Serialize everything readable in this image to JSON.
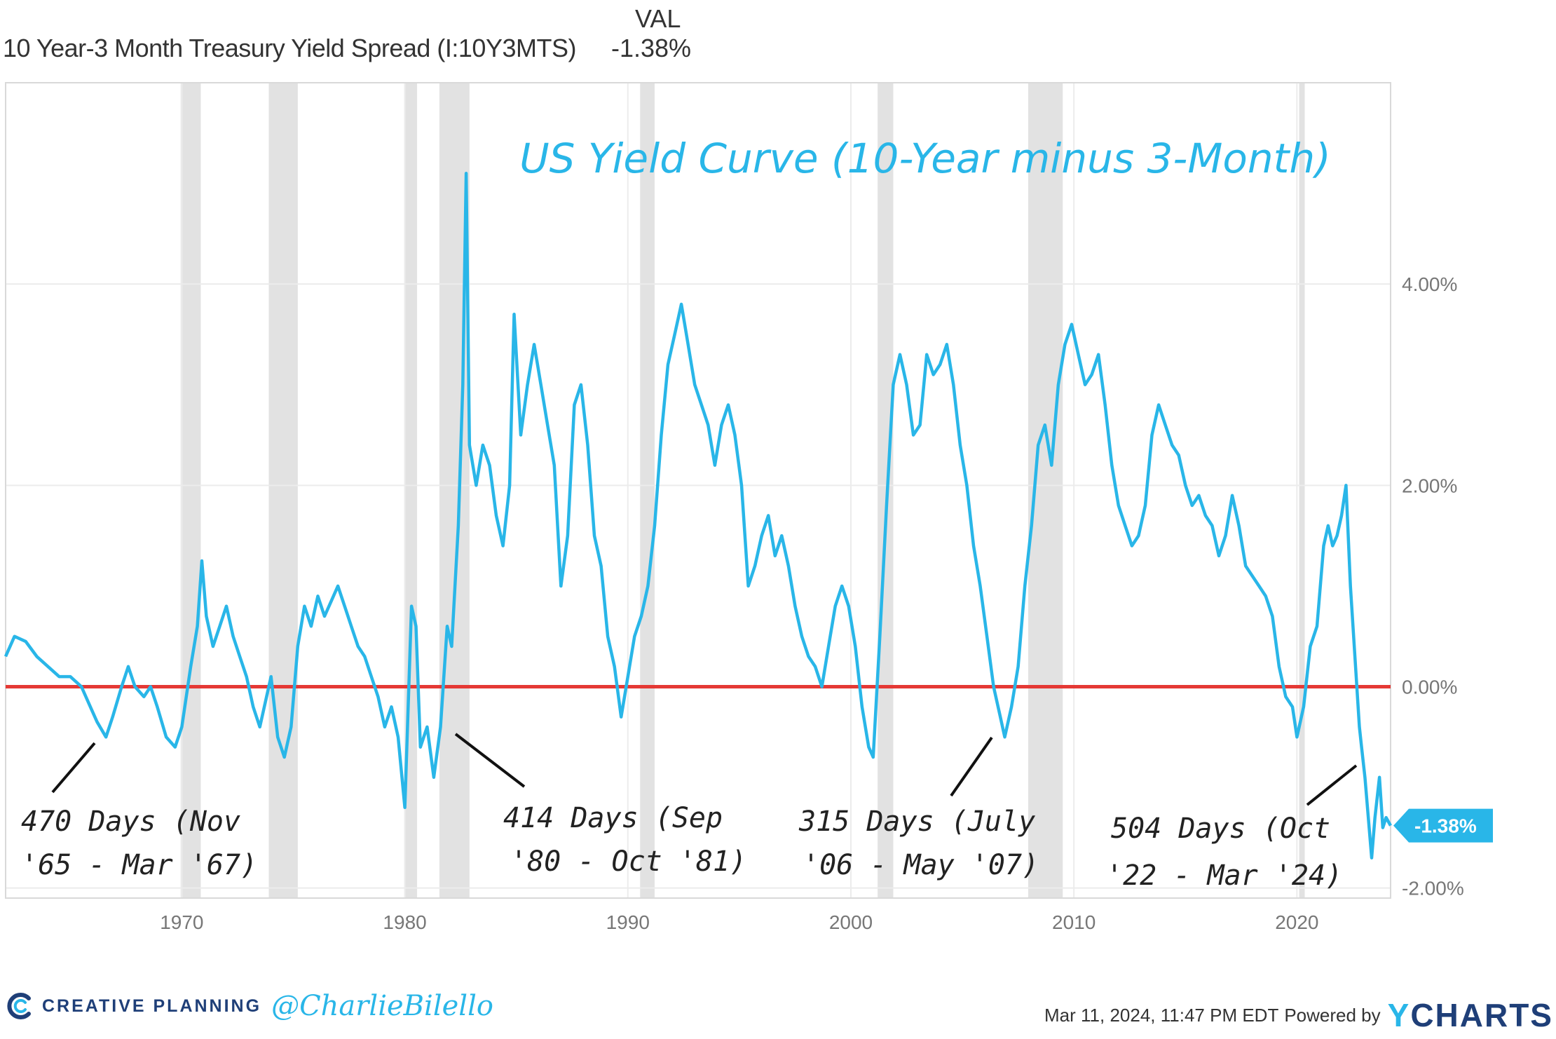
{
  "legend": {
    "column_header": "VAL",
    "series_label": "10 Year-3 Month Treasury Yield Spread (I:10Y3MTS)",
    "series_value": "-1.38%"
  },
  "chart_data": {
    "type": "line",
    "title": "US Yield Curve (10-Year minus 3-Month)",
    "xlabel": "",
    "ylabel": "",
    "x_range": [
      1962.1,
      2024.2
    ],
    "ylim": [
      -2.1,
      6.0
    ],
    "x_ticks": [
      "1970",
      "1980",
      "1990",
      "2000",
      "2010",
      "2020"
    ],
    "x_tick_values": [
      1970,
      1980,
      1990,
      2000,
      2010,
      2020
    ],
    "y_ticks": [
      "4.00%",
      "2.00%",
      "0.00%",
      "-2.00%"
    ],
    "y_tick_values": [
      4,
      2,
      0,
      -2
    ],
    "y_axis_side": "right",
    "grid": true,
    "zero_line": {
      "value": 0,
      "color": "#e53935"
    },
    "line_color": "#29b6e8",
    "last_value_badge": "-1.38%",
    "last_value": -1.38,
    "recessions": [
      [
        1969.95,
        1970.85
      ],
      [
        1973.9,
        1975.2
      ],
      [
        1980.0,
        1980.55
      ],
      [
        1981.55,
        1982.9
      ],
      [
        1990.55,
        1991.2
      ],
      [
        2001.2,
        2001.9
      ],
      [
        2007.95,
        2009.5
      ],
      [
        2020.1,
        2020.35
      ]
    ],
    "series": [
      {
        "values": [
          [
            1962.1,
            0.3
          ],
          [
            1962.5,
            0.5
          ],
          [
            1963.0,
            0.45
          ],
          [
            1963.5,
            0.3
          ],
          [
            1964.0,
            0.2
          ],
          [
            1964.5,
            0.1
          ],
          [
            1965.0,
            0.1
          ],
          [
            1965.5,
            0.0
          ],
          [
            1965.9,
            -0.2
          ],
          [
            1966.2,
            -0.35
          ],
          [
            1966.6,
            -0.5
          ],
          [
            1966.9,
            -0.3
          ],
          [
            1967.3,
            0.0
          ],
          [
            1967.6,
            0.2
          ],
          [
            1967.9,
            0.0
          ],
          [
            1968.3,
            -0.1
          ],
          [
            1968.6,
            0.0
          ],
          [
            1968.9,
            -0.2
          ],
          [
            1969.3,
            -0.5
          ],
          [
            1969.7,
            -0.6
          ],
          [
            1970.0,
            -0.4
          ],
          [
            1970.4,
            0.2
          ],
          [
            1970.7,
            0.6
          ],
          [
            1970.9,
            1.25
          ],
          [
            1971.1,
            0.7
          ],
          [
            1971.4,
            0.4
          ],
          [
            1971.7,
            0.6
          ],
          [
            1972.0,
            0.8
          ],
          [
            1972.3,
            0.5
          ],
          [
            1972.6,
            0.3
          ],
          [
            1972.9,
            0.1
          ],
          [
            1973.2,
            -0.2
          ],
          [
            1973.5,
            -0.4
          ],
          [
            1973.8,
            -0.1
          ],
          [
            1974.0,
            0.1
          ],
          [
            1974.3,
            -0.5
          ],
          [
            1974.6,
            -0.7
          ],
          [
            1974.9,
            -0.4
          ],
          [
            1975.2,
            0.4
          ],
          [
            1975.5,
            0.8
          ],
          [
            1975.8,
            0.6
          ],
          [
            1976.1,
            0.9
          ],
          [
            1976.4,
            0.7
          ],
          [
            1976.7,
            0.85
          ],
          [
            1977.0,
            1.0
          ],
          [
            1977.3,
            0.8
          ],
          [
            1977.6,
            0.6
          ],
          [
            1977.9,
            0.4
          ],
          [
            1978.2,
            0.3
          ],
          [
            1978.5,
            0.1
          ],
          [
            1978.8,
            -0.1
          ],
          [
            1979.1,
            -0.4
          ],
          [
            1979.4,
            -0.2
          ],
          [
            1979.7,
            -0.5
          ],
          [
            1980.0,
            -1.2
          ],
          [
            1980.3,
            0.8
          ],
          [
            1980.5,
            0.6
          ],
          [
            1980.7,
            -0.6
          ],
          [
            1981.0,
            -0.4
          ],
          [
            1981.3,
            -0.9
          ],
          [
            1981.6,
            -0.4
          ],
          [
            1981.9,
            0.6
          ],
          [
            1982.1,
            0.4
          ],
          [
            1982.4,
            1.6
          ],
          [
            1982.6,
            3.0
          ],
          [
            1982.75,
            5.1
          ],
          [
            1982.9,
            2.4
          ],
          [
            1983.2,
            2.0
          ],
          [
            1983.5,
            2.4
          ],
          [
            1983.8,
            2.2
          ],
          [
            1984.1,
            1.7
          ],
          [
            1984.4,
            1.4
          ],
          [
            1984.7,
            2.0
          ],
          [
            1984.9,
            3.7
          ],
          [
            1985.2,
            2.5
          ],
          [
            1985.5,
            3.0
          ],
          [
            1985.8,
            3.4
          ],
          [
            1986.1,
            3.0
          ],
          [
            1986.4,
            2.6
          ],
          [
            1986.7,
            2.2
          ],
          [
            1987.0,
            1.0
          ],
          [
            1987.3,
            1.5
          ],
          [
            1987.6,
            2.8
          ],
          [
            1987.9,
            3.0
          ],
          [
            1988.2,
            2.4
          ],
          [
            1988.5,
            1.5
          ],
          [
            1988.8,
            1.2
          ],
          [
            1989.1,
            0.5
          ],
          [
            1989.4,
            0.2
          ],
          [
            1989.7,
            -0.3
          ],
          [
            1990.0,
            0.1
          ],
          [
            1990.3,
            0.5
          ],
          [
            1990.6,
            0.7
          ],
          [
            1990.9,
            1.0
          ],
          [
            1991.2,
            1.6
          ],
          [
            1991.5,
            2.5
          ],
          [
            1991.8,
            3.2
          ],
          [
            1992.1,
            3.5
          ],
          [
            1992.4,
            3.8
          ],
          [
            1992.7,
            3.4
          ],
          [
            1993.0,
            3.0
          ],
          [
            1993.3,
            2.8
          ],
          [
            1993.6,
            2.6
          ],
          [
            1993.9,
            2.2
          ],
          [
            1994.2,
            2.6
          ],
          [
            1994.5,
            2.8
          ],
          [
            1994.8,
            2.5
          ],
          [
            1995.1,
            2.0
          ],
          [
            1995.4,
            1.0
          ],
          [
            1995.7,
            1.2
          ],
          [
            1996.0,
            1.5
          ],
          [
            1996.3,
            1.7
          ],
          [
            1996.6,
            1.3
          ],
          [
            1996.9,
            1.5
          ],
          [
            1997.2,
            1.2
          ],
          [
            1997.5,
            0.8
          ],
          [
            1997.8,
            0.5
          ],
          [
            1998.1,
            0.3
          ],
          [
            1998.4,
            0.2
          ],
          [
            1998.7,
            0.0
          ],
          [
            1999.0,
            0.4
          ],
          [
            1999.3,
            0.8
          ],
          [
            1999.6,
            1.0
          ],
          [
            1999.9,
            0.8
          ],
          [
            2000.2,
            0.4
          ],
          [
            2000.5,
            -0.2
          ],
          [
            2000.8,
            -0.6
          ],
          [
            2001.0,
            -0.7
          ],
          [
            2001.3,
            0.5
          ],
          [
            2001.6,
            1.8
          ],
          [
            2001.9,
            3.0
          ],
          [
            2002.2,
            3.3
          ],
          [
            2002.5,
            3.0
          ],
          [
            2002.8,
            2.5
          ],
          [
            2003.1,
            2.6
          ],
          [
            2003.4,
            3.3
          ],
          [
            2003.7,
            3.1
          ],
          [
            2004.0,
            3.2
          ],
          [
            2004.3,
            3.4
          ],
          [
            2004.6,
            3.0
          ],
          [
            2004.9,
            2.4
          ],
          [
            2005.2,
            2.0
          ],
          [
            2005.5,
            1.4
          ],
          [
            2005.8,
            1.0
          ],
          [
            2006.1,
            0.5
          ],
          [
            2006.4,
            0.0
          ],
          [
            2006.7,
            -0.3
          ],
          [
            2006.9,
            -0.5
          ],
          [
            2007.2,
            -0.2
          ],
          [
            2007.5,
            0.2
          ],
          [
            2007.8,
            1.0
          ],
          [
            2008.1,
            1.6
          ],
          [
            2008.4,
            2.4
          ],
          [
            2008.7,
            2.6
          ],
          [
            2009.0,
            2.2
          ],
          [
            2009.3,
            3.0
          ],
          [
            2009.6,
            3.4
          ],
          [
            2009.9,
            3.6
          ],
          [
            2010.2,
            3.3
          ],
          [
            2010.5,
            3.0
          ],
          [
            2010.8,
            3.1
          ],
          [
            2011.1,
            3.3
          ],
          [
            2011.4,
            2.8
          ],
          [
            2011.7,
            2.2
          ],
          [
            2012.0,
            1.8
          ],
          [
            2012.3,
            1.6
          ],
          [
            2012.6,
            1.4
          ],
          [
            2012.9,
            1.5
          ],
          [
            2013.2,
            1.8
          ],
          [
            2013.5,
            2.5
          ],
          [
            2013.8,
            2.8
          ],
          [
            2014.1,
            2.6
          ],
          [
            2014.4,
            2.4
          ],
          [
            2014.7,
            2.3
          ],
          [
            2015.0,
            2.0
          ],
          [
            2015.3,
            1.8
          ],
          [
            2015.6,
            1.9
          ],
          [
            2015.9,
            1.7
          ],
          [
            2016.2,
            1.6
          ],
          [
            2016.5,
            1.3
          ],
          [
            2016.8,
            1.5
          ],
          [
            2017.1,
            1.9
          ],
          [
            2017.4,
            1.6
          ],
          [
            2017.7,
            1.2
          ],
          [
            2018.0,
            1.1
          ],
          [
            2018.3,
            1.0
          ],
          [
            2018.6,
            0.9
          ],
          [
            2018.9,
            0.7
          ],
          [
            2019.2,
            0.2
          ],
          [
            2019.5,
            -0.1
          ],
          [
            2019.8,
            -0.2
          ],
          [
            2020.0,
            -0.5
          ],
          [
            2020.3,
            -0.2
          ],
          [
            2020.6,
            0.4
          ],
          [
            2020.9,
            0.6
          ],
          [
            2021.2,
            1.4
          ],
          [
            2021.4,
            1.6
          ],
          [
            2021.6,
            1.4
          ],
          [
            2021.8,
            1.5
          ],
          [
            2022.0,
            1.7
          ],
          [
            2022.2,
            2.0
          ],
          [
            2022.4,
            1.0
          ],
          [
            2022.6,
            0.3
          ],
          [
            2022.8,
            -0.4
          ],
          [
            2022.9,
            -0.6
          ],
          [
            2023.05,
            -0.9
          ],
          [
            2023.2,
            -1.3
          ],
          [
            2023.35,
            -1.7
          ],
          [
            2023.5,
            -1.3
          ],
          [
            2023.7,
            -0.9
          ],
          [
            2023.85,
            -1.4
          ],
          [
            2024.0,
            -1.3
          ],
          [
            2024.2,
            -1.38
          ]
        ]
      }
    ],
    "annotations": [
      {
        "line1": "470 Days (Nov",
        "line2": "'65 - Mar '67)"
      },
      {
        "line1": "414 Days (Sep",
        "line2": "'80 - Oct '81)"
      },
      {
        "line1": "315 Days (July",
        "line2": "'06 - May '07)"
      },
      {
        "line1": "504 Days (Oct",
        "line2": "'22 - Mar '24)"
      }
    ]
  },
  "footer": {
    "brand": "CREATIVE PLANNING",
    "handle": "@CharlieBilello",
    "timestamp": "Mar 11, 2024, 11:47 PM EDT",
    "powered_by": "Powered by",
    "ycharts_logo": "YCHARTS"
  }
}
